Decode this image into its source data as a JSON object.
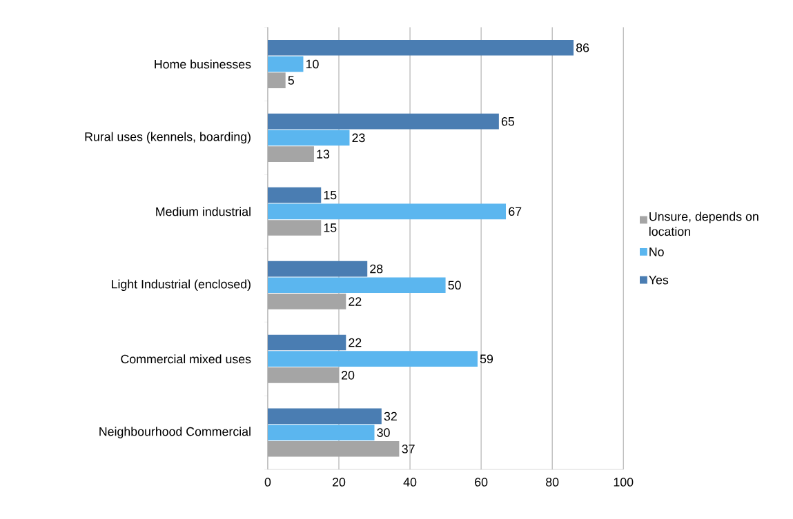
{
  "chart_data": {
    "type": "bar",
    "orientation": "horizontal",
    "categories": [
      "Home businesses",
      "Rural uses (kennels, boarding)",
      "Medium industrial",
      "Light Industrial (enclosed)",
      "Commercial mixed uses",
      "Neighbourhood Commercial"
    ],
    "series": [
      {
        "name": "Unsure, depends on location",
        "color": "#a5a5a5",
        "values": [
          5,
          13,
          15,
          22,
          20,
          37
        ]
      },
      {
        "name": "No",
        "color": "#5bb6ef",
        "values": [
          10,
          23,
          67,
          50,
          59,
          30
        ]
      },
      {
        "name": "Yes",
        "color": "#4a7db2",
        "values": [
          86,
          65,
          15,
          28,
          22,
          32
        ]
      }
    ],
    "xlim": [
      0,
      100
    ],
    "xticks": [
      0,
      20,
      40,
      60,
      80,
      100
    ],
    "grid": "x",
    "legend": "right",
    "data_labels": true
  }
}
